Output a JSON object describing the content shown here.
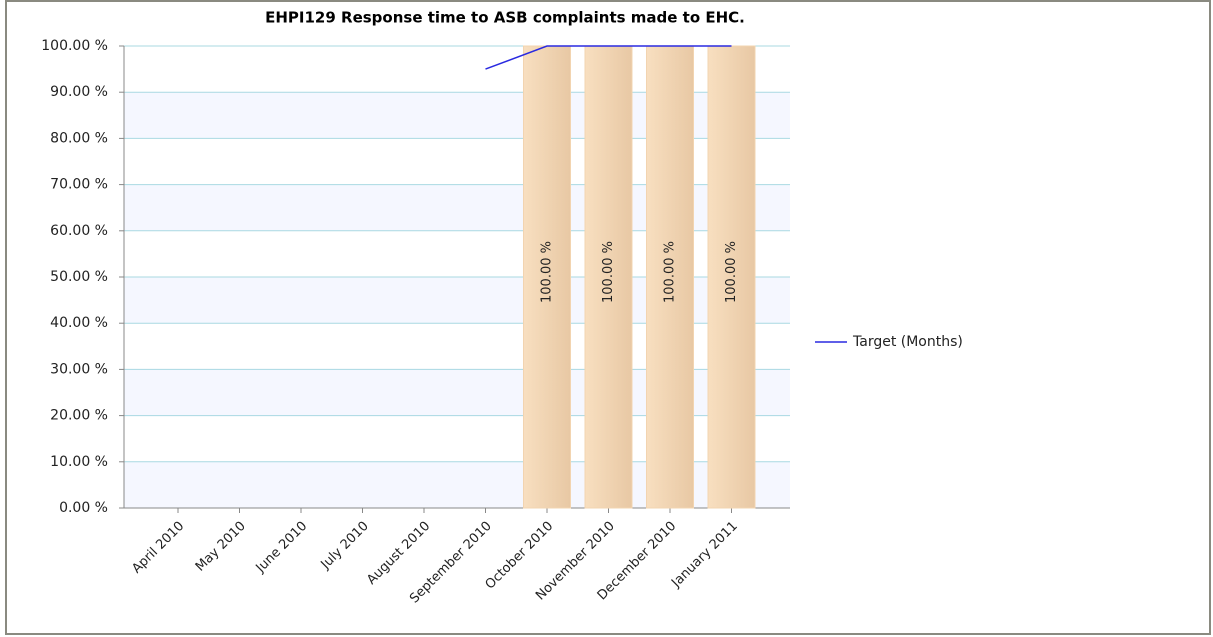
{
  "chart_data": {
    "type": "bar",
    "title": "EHPI129 Response time to ASB complaints made to EHC.",
    "categories": [
      "April 2010",
      "May 2010",
      "June 2010",
      "July 2010",
      "August 2010",
      "September 2010",
      "October 2010",
      "November 2010",
      "December 2010",
      "January 2011"
    ],
    "series": [
      {
        "type": "bar",
        "color": "#f2d4b0",
        "values": [
          null,
          null,
          null,
          null,
          null,
          null,
          100,
          100,
          100,
          100
        ],
        "value_labels": [
          null,
          null,
          null,
          null,
          null,
          null,
          "100.00 %",
          "100.00 %",
          "100.00 %",
          "100.00 %"
        ]
      },
      {
        "type": "line",
        "name": "Target (Months)",
        "color": "#2a2ae0",
        "values": [
          null,
          null,
          null,
          null,
          null,
          95,
          100,
          100,
          100,
          100
        ]
      }
    ],
    "ylim": [
      0,
      100
    ],
    "yticks": [
      {
        "value": 0,
        "label": "0.00 %"
      },
      {
        "value": 10,
        "label": "10.00 %"
      },
      {
        "value": 20,
        "label": "20.00 %"
      },
      {
        "value": 30,
        "label": "30.00 %"
      },
      {
        "value": 40,
        "label": "40.00 %"
      },
      {
        "value": 50,
        "label": "50.00 %"
      },
      {
        "value": 60,
        "label": "60.00 %"
      },
      {
        "value": 70,
        "label": "70.00 %"
      },
      {
        "value": 80,
        "label": "80.00 %"
      },
      {
        "value": 90,
        "label": "90.00 %"
      },
      {
        "value": 100,
        "label": "100.00 %"
      }
    ],
    "grid": true,
    "legend": "right"
  }
}
